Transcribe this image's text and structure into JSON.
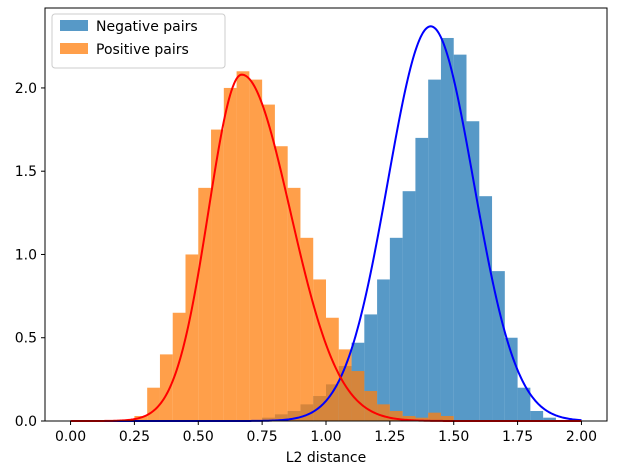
{
  "chart_data": {
    "type": "bar",
    "xlabel": "L2 distance",
    "ylabel": "",
    "xlim": [
      -0.1,
      2.1
    ],
    "ylim": [
      0,
      2.48
    ],
    "x_ticks": [
      "0.00",
      "0.25",
      "0.50",
      "0.75",
      "1.00",
      "1.25",
      "1.50",
      "1.75",
      "2.00"
    ],
    "y_ticks": [
      "0.0",
      "0.5",
      "1.0",
      "1.5",
      "2.0"
    ],
    "grid": false,
    "legend_position": "top-left",
    "series": [
      {
        "name": "Negative pairs",
        "kind": "histogram",
        "bar_color": "#1f77b4",
        "bar_alpha": 0.75,
        "curve_color": "#0000ff",
        "curve": {
          "mean": 1.41,
          "std": 0.168,
          "peak": 2.37
        },
        "bins": [
          [
            0.75,
            0.02
          ],
          [
            0.8,
            0.04
          ],
          [
            0.85,
            0.06
          ],
          [
            0.9,
            0.1
          ],
          [
            0.95,
            0.15
          ],
          [
            1.0,
            0.22
          ],
          [
            1.05,
            0.33
          ],
          [
            1.1,
            0.47
          ],
          [
            1.15,
            0.64
          ],
          [
            1.2,
            0.85
          ],
          [
            1.25,
            1.1
          ],
          [
            1.3,
            1.38
          ],
          [
            1.35,
            1.7
          ],
          [
            1.4,
            2.05
          ],
          [
            1.45,
            2.3
          ],
          [
            1.5,
            2.2
          ],
          [
            1.55,
            1.8
          ],
          [
            1.6,
            1.35
          ],
          [
            1.65,
            0.9
          ],
          [
            1.7,
            0.5
          ],
          [
            1.75,
            0.2
          ],
          [
            1.8,
            0.06
          ],
          [
            1.85,
            0.02
          ]
        ]
      },
      {
        "name": "Positive pairs",
        "kind": "histogram",
        "bar_color": "#ff7f0e",
        "bar_alpha": 0.75,
        "curve_color": "#ff0000",
        "curve": {
          "mode": 0.67,
          "std_left": 0.13,
          "std_right": 0.19,
          "peak": 2.08
        },
        "bins": [
          [
            0.25,
            0.03
          ],
          [
            0.3,
            0.2
          ],
          [
            0.35,
            0.4
          ],
          [
            0.4,
            0.65
          ],
          [
            0.45,
            1.0
          ],
          [
            0.5,
            1.4
          ],
          [
            0.55,
            1.75
          ],
          [
            0.6,
            2.0
          ],
          [
            0.65,
            2.1
          ],
          [
            0.7,
            2.05
          ],
          [
            0.75,
            1.9
          ],
          [
            0.8,
            1.65
          ],
          [
            0.85,
            1.4
          ],
          [
            0.9,
            1.1
          ],
          [
            0.95,
            0.85
          ],
          [
            1.0,
            0.62
          ],
          [
            1.05,
            0.43
          ],
          [
            1.1,
            0.3
          ],
          [
            1.15,
            0.18
          ],
          [
            1.2,
            0.1
          ],
          [
            1.25,
            0.06
          ],
          [
            1.3,
            0.03
          ],
          [
            1.35,
            0.02
          ],
          [
            1.4,
            0.05
          ],
          [
            1.45,
            0.03
          ]
        ]
      }
    ]
  }
}
